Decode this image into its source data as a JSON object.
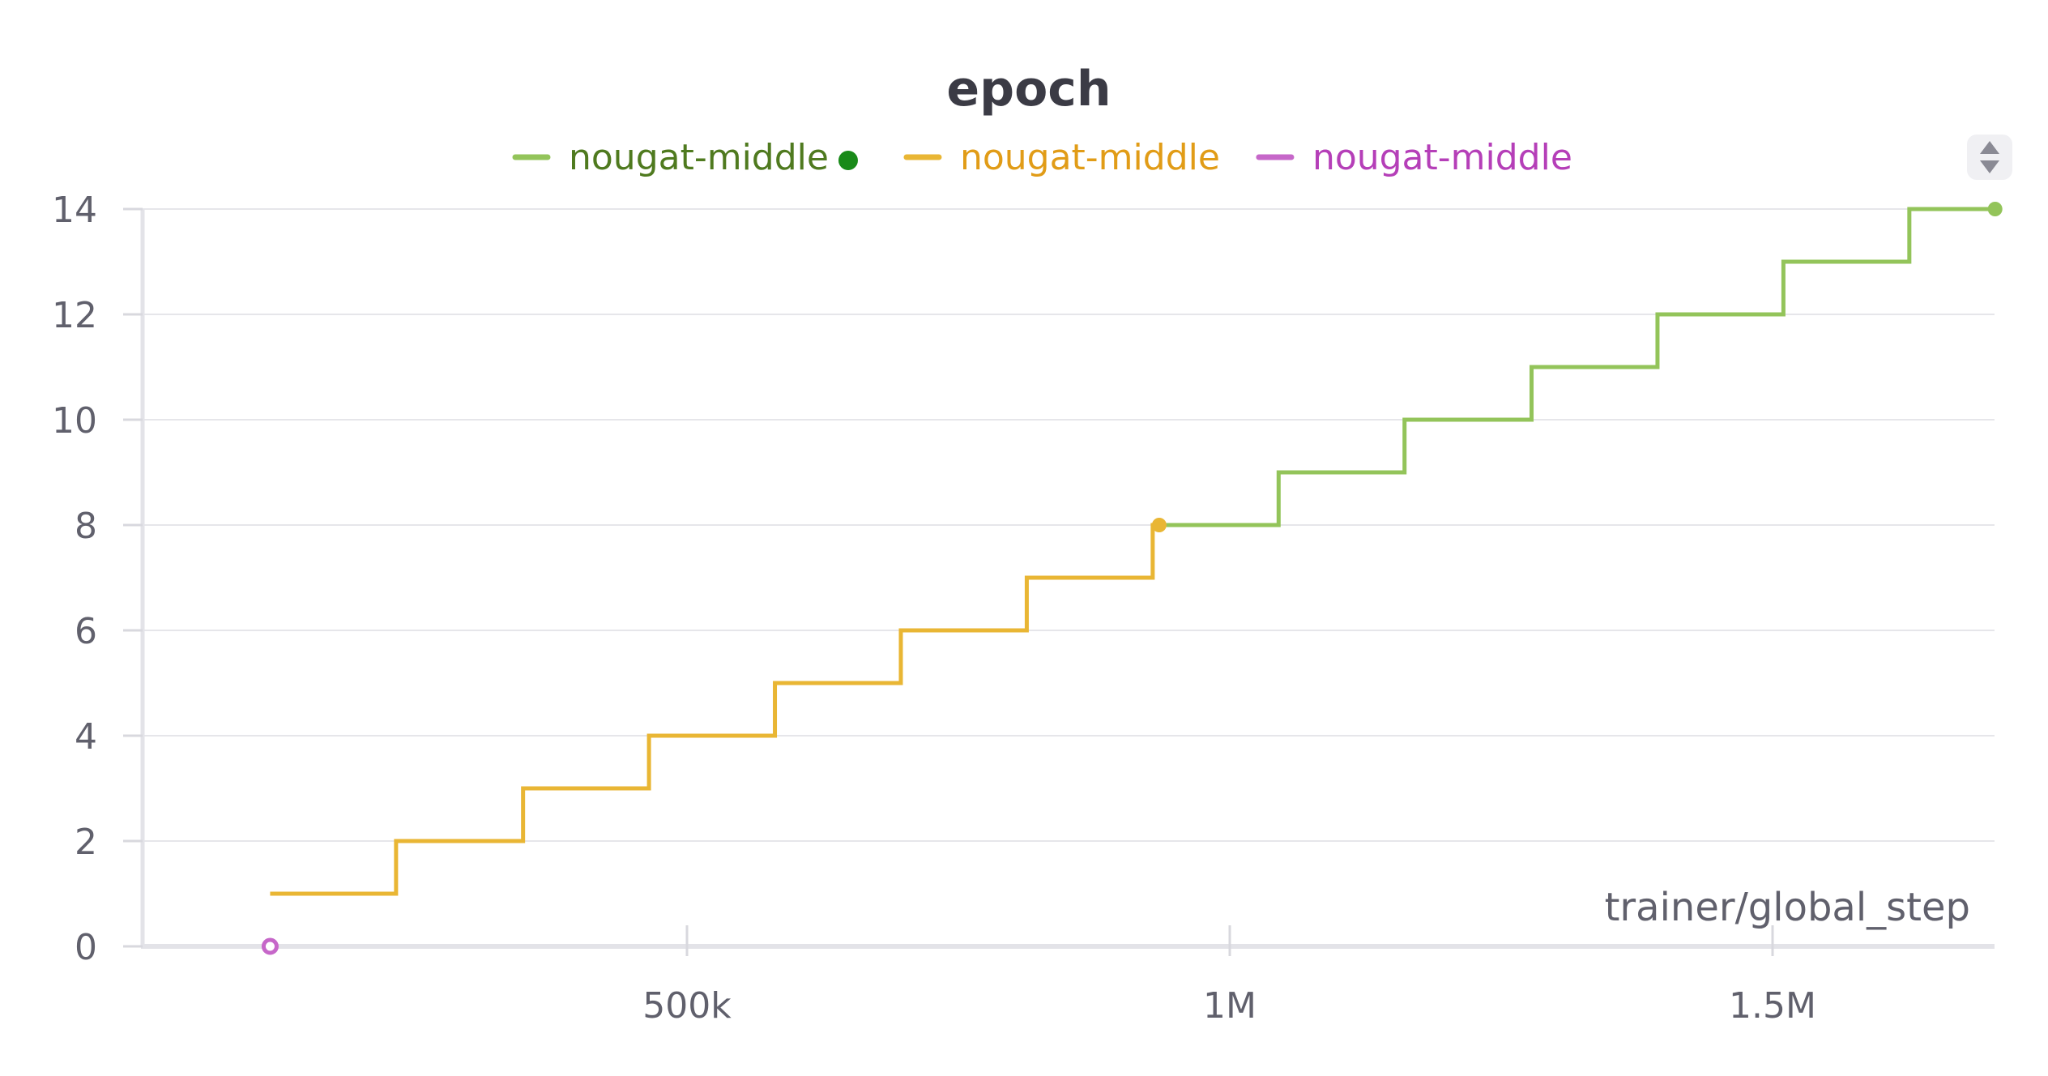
{
  "chart_data": {
    "type": "line",
    "title": "epoch",
    "xlabel": "trainer/global_step",
    "ylabel": "",
    "xlim": [
      0,
      1700000
    ],
    "ylim": [
      0,
      14
    ],
    "x_ticks": [
      500000,
      1000000,
      1500000
    ],
    "x_tick_labels": [
      "500k",
      "1M",
      "1.5M"
    ],
    "y_ticks": [
      0,
      2,
      4,
      6,
      8,
      10,
      12,
      14
    ],
    "y_tick_labels": [
      "0",
      "2",
      "4",
      "6",
      "8",
      "10",
      "12",
      "14"
    ],
    "grid": true,
    "legend_position": "top",
    "step": true,
    "series": [
      {
        "name": "nougat-middle",
        "color": "#93c45a",
        "text_color": "#4f7a1f",
        "marker": "green-dot",
        "marker_color": "#198a19",
        "x": [
          940000,
          1045000,
          1161000,
          1278000,
          1394000,
          1510000,
          1626000,
          1705000
        ],
        "y": [
          8,
          9,
          10,
          11,
          12,
          13,
          14,
          14
        ]
      },
      {
        "name": "nougat-middle",
        "color": "#e9b634",
        "text_color": "#e19c17",
        "x": [
          116000,
          232000,
          349000,
          465000,
          581000,
          697000,
          813000,
          929000,
          935000
        ],
        "y": [
          1,
          2,
          3,
          4,
          5,
          6,
          7,
          8,
          8
        ]
      },
      {
        "name": "nougat-middle",
        "color": "#c667c9",
        "text_color": "#b53fb8",
        "x": [
          116000
        ],
        "y": [
          0
        ]
      }
    ]
  }
}
